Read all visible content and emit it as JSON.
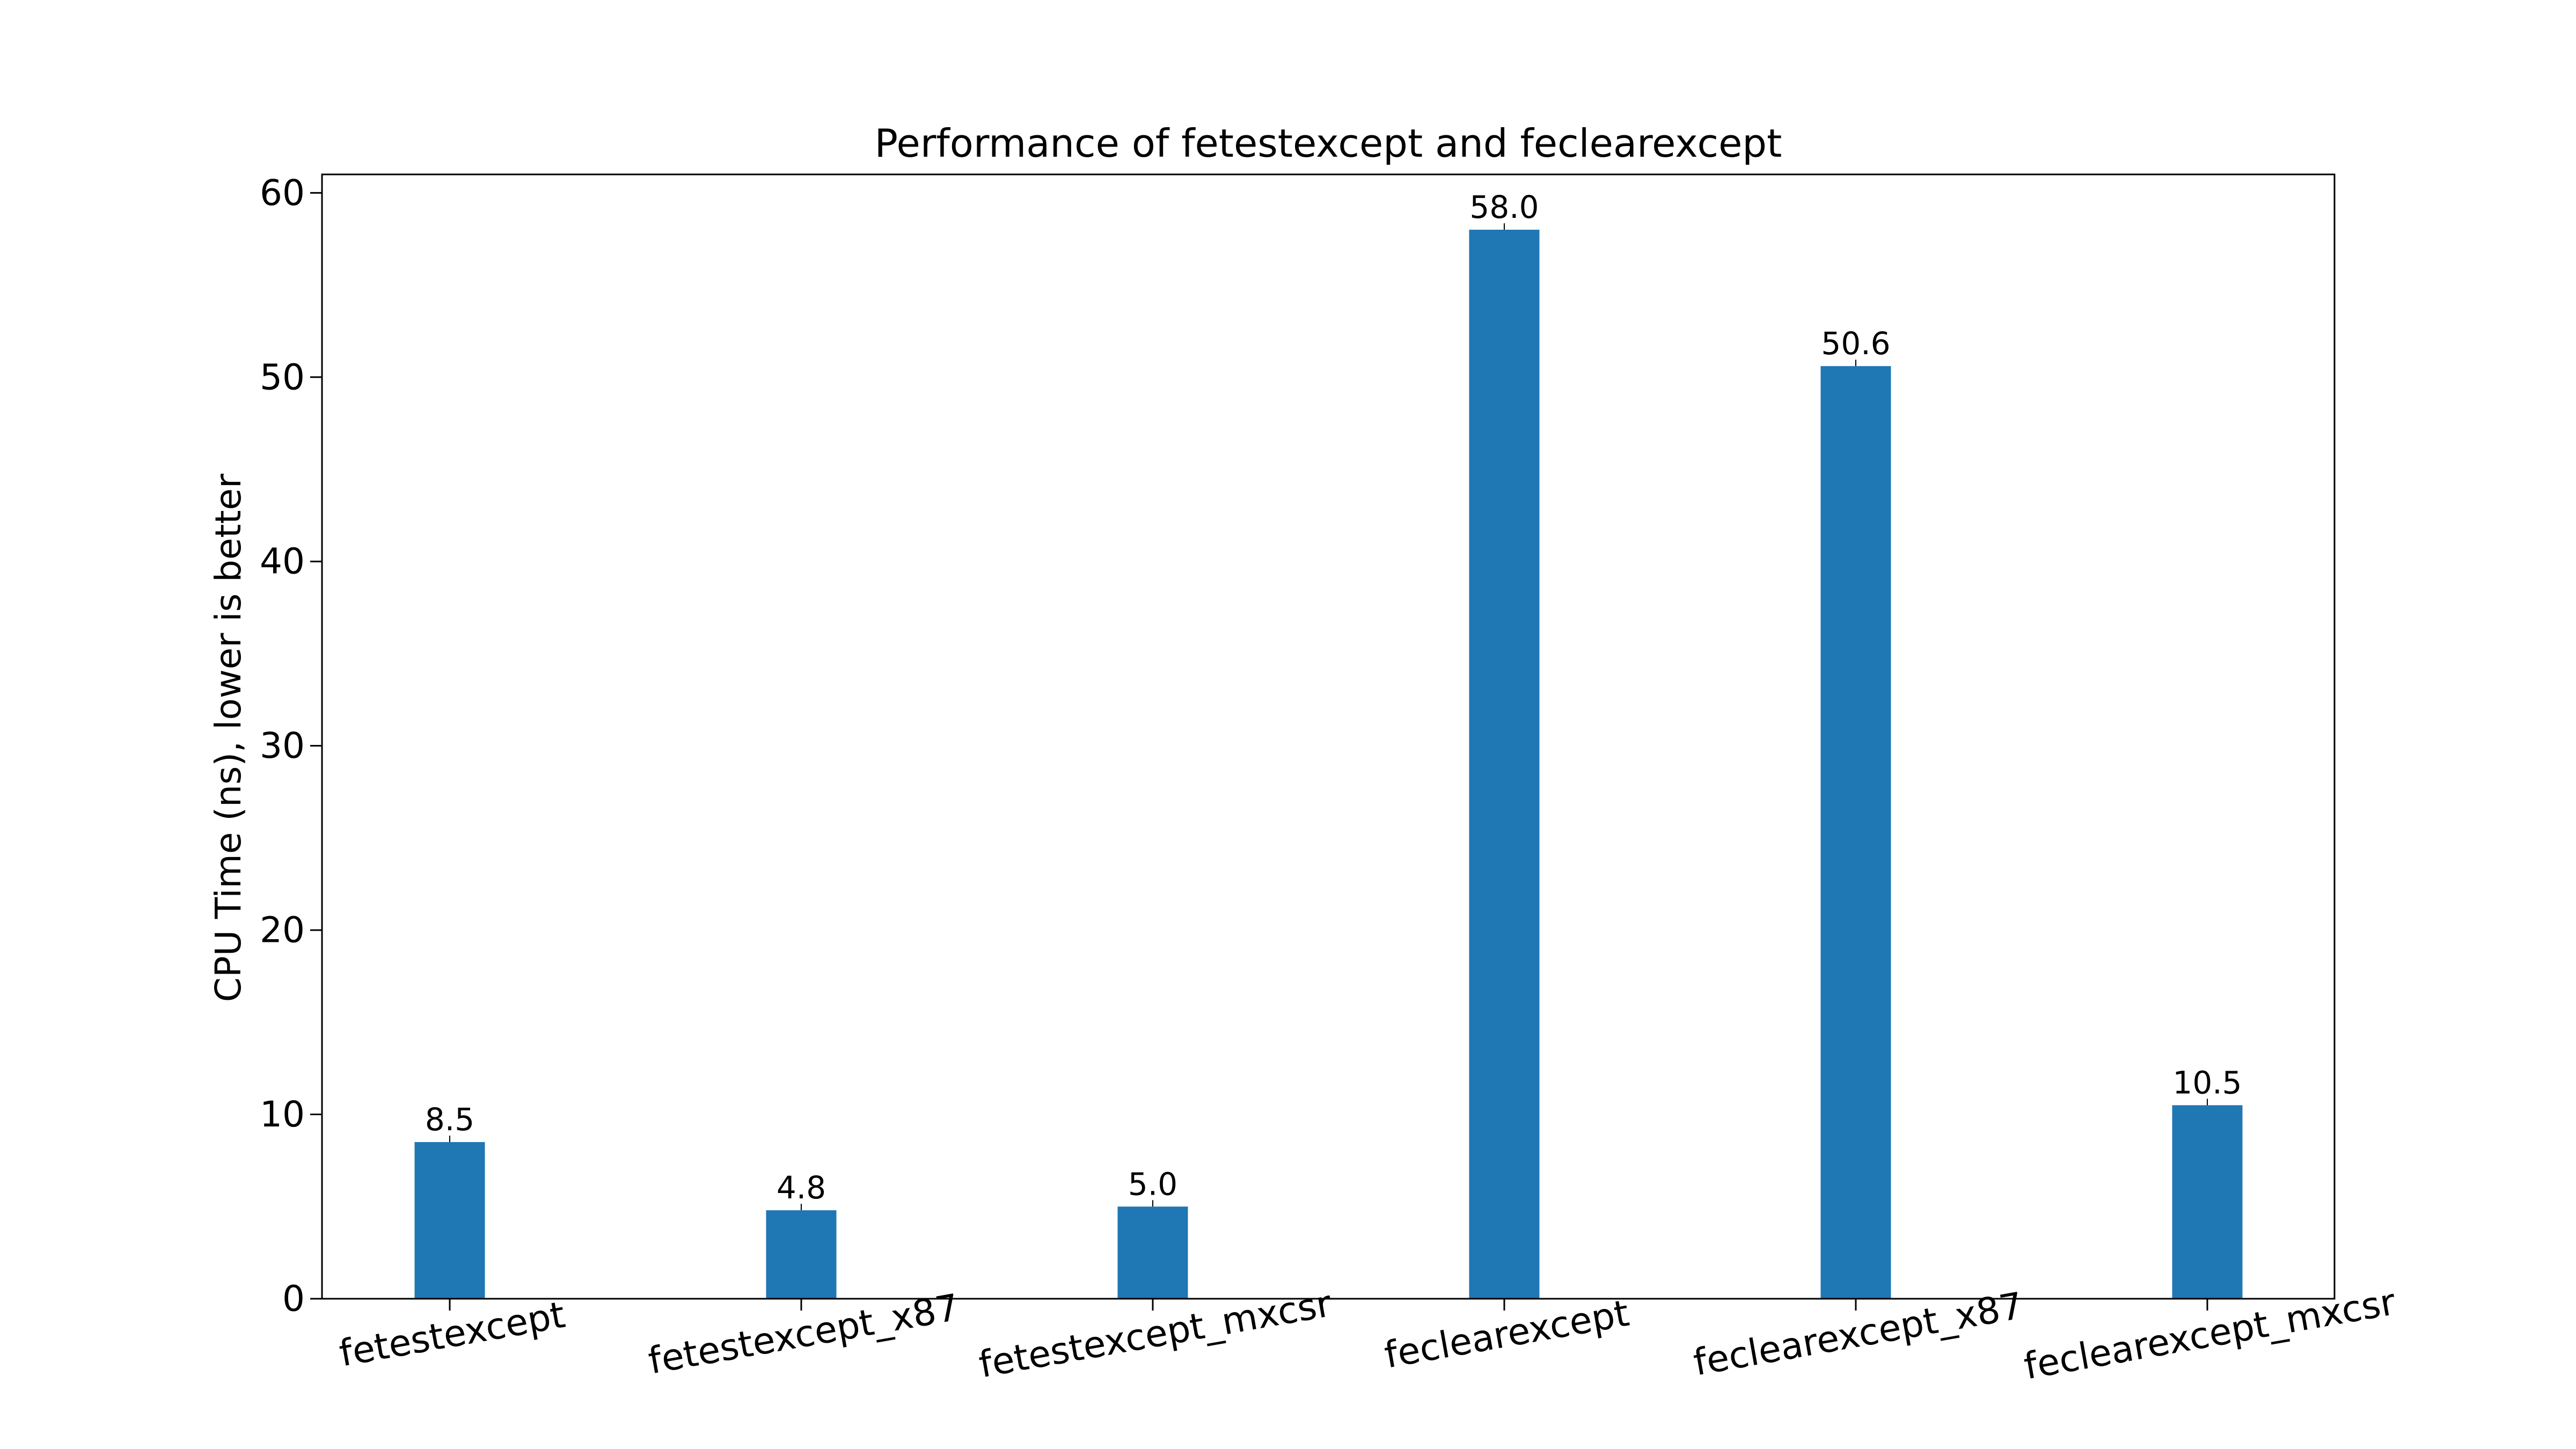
{
  "chart_data": {
    "type": "bar",
    "title": "Performance of fetestexcept and feclearexcept",
    "ylabel": "CPU Time (ns), lower is better",
    "xlabel": "",
    "categories": [
      "fetestexcept",
      "fetestexcept_x87",
      "fetestexcept_mxcsr",
      "feclearexcept",
      "feclearexcept_x87",
      "feclearexcept_mxcsr"
    ],
    "values": [
      8.5,
      4.8,
      5.0,
      58.0,
      50.6,
      10.5
    ],
    "data_labels": [
      "8.5",
      "4.8",
      "5.0",
      "58.0",
      "50.6",
      "10.5"
    ],
    "ylim": [
      0,
      61
    ],
    "yticks": [
      0,
      10,
      20,
      30,
      40,
      50,
      60
    ],
    "grid": false,
    "legend": "none",
    "x_tick_rotation_deg": -10,
    "bar_color": "#1f77b4",
    "axis_color": "#000000",
    "background_color": "#ffffff"
  }
}
